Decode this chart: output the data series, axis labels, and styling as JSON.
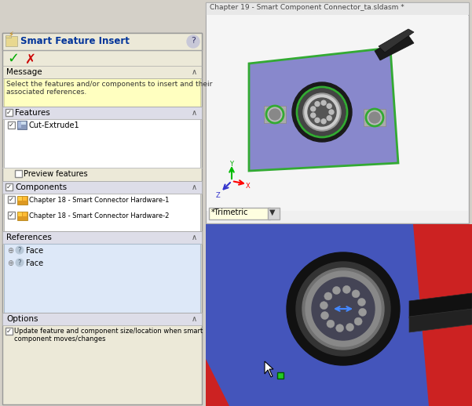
{
  "bg_color": "#d4d0c8",
  "dialog_bg": "#ece9d8",
  "dialog_border": "#888888",
  "title_text": "Smart Feature Insert",
  "title_color": "#003399",
  "message_text": "Select the features and/or components to insert and their\nassociated references.",
  "message_bg": "#ffffc0",
  "features_item": "Cut-Extrude1",
  "components": [
    "Chapter 18 - Smart Connector Hardware-1",
    "Chapter 18 - Smart Connector Hardware-2"
  ],
  "references": [
    "Face",
    "Face"
  ],
  "options_text": "Update feature and component size/location when smart\ncomponent moves/changes",
  "top_viewport_title": "Chapter 19 - Smart Component Connector_ta.sldasm *",
  "trimetric_label": "*Trimetric",
  "sheet_color": "#8888cc",
  "sheet_border": "#33aa33",
  "connector_outer": "#222222",
  "connector_mid": "#555555",
  "connector_face": "#888888",
  "hardware_color": "#aaaaaa",
  "bottom_blue": "#4455bb",
  "bottom_red": "#cc2222",
  "cable_color": "#1a1a1a"
}
